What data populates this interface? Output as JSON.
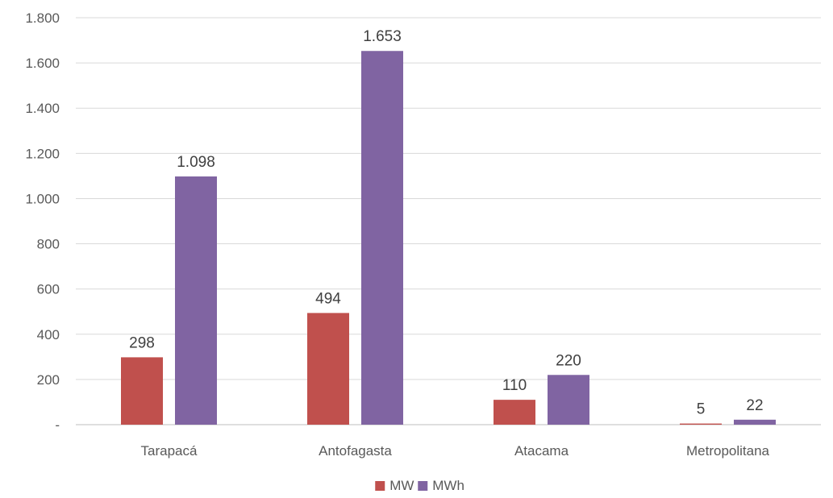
{
  "chart_data": {
    "type": "bar",
    "categories": [
      "Tarapacá",
      "Antofagasta",
      "Atacama",
      "Metropolitana"
    ],
    "series": [
      {
        "name": "MW",
        "values": [
          298,
          494,
          110,
          5
        ],
        "labels": [
          "298",
          "494",
          "110",
          "5"
        ],
        "color": "#c0504d"
      },
      {
        "name": "MWh",
        "values": [
          1098,
          1653,
          220,
          22
        ],
        "labels": [
          "1.098",
          "1.653",
          "220",
          "22"
        ],
        "color": "#8064a2"
      }
    ],
    "ylim": [
      0,
      1800
    ],
    "yticks": [
      0,
      200,
      400,
      600,
      800,
      1000,
      1200,
      1400,
      1600,
      1800
    ],
    "ytick_labels": [
      "-",
      "200",
      "400",
      "600",
      "800",
      "1.000",
      "1.200",
      "1.400",
      "1.600",
      "1.800"
    ],
    "grid": true,
    "legend": "bottom-center"
  }
}
